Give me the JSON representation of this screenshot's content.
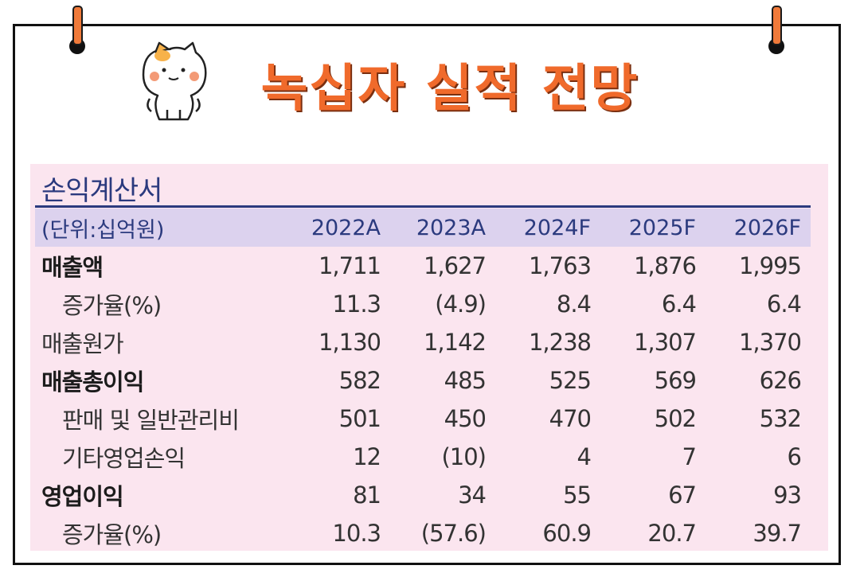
{
  "title": "녹십자 실적 전망",
  "section_title": "손익계산서",
  "header": {
    "unit_label": "(단위:십억원)",
    "years": [
      "2022A",
      "2023A",
      "2024F",
      "2025F",
      "2026F"
    ]
  },
  "rows": [
    {
      "label": "매출액",
      "values": [
        "1,711",
        "1,627",
        "1,763",
        "1,876",
        "1,995"
      ]
    },
    {
      "label": "증가율(%)",
      "values": [
        "11.3",
        "(4.9)",
        "8.4",
        "6.4",
        "6.4"
      ]
    },
    {
      "label": "매출원가",
      "values": [
        "1,130",
        "1,142",
        "1,238",
        "1,307",
        "1,370"
      ]
    },
    {
      "label": "매출총이익",
      "values": [
        "582",
        "485",
        "525",
        "569",
        "626"
      ]
    },
    {
      "label": "판매 및 일반관리비",
      "values": [
        "501",
        "450",
        "470",
        "502",
        "532"
      ]
    },
    {
      "label": "기타영업손익",
      "values": [
        "12",
        "(10)",
        "4",
        "7",
        "6"
      ]
    },
    {
      "label": "영업이익",
      "values": [
        "81",
        "34",
        "55",
        "67",
        "93"
      ]
    },
    {
      "label": "증가율(%)",
      "values": [
        "10.3",
        "(57.6)",
        "60.9",
        "20.7",
        "39.7"
      ]
    }
  ],
  "colors": {
    "title": "#f06a2b",
    "header_text": "#2b3a7e",
    "panel_bg": "#fbe5ef",
    "header_bg": "#dcd2ee"
  },
  "icons": {
    "mascot": "cat-mascot-icon"
  }
}
